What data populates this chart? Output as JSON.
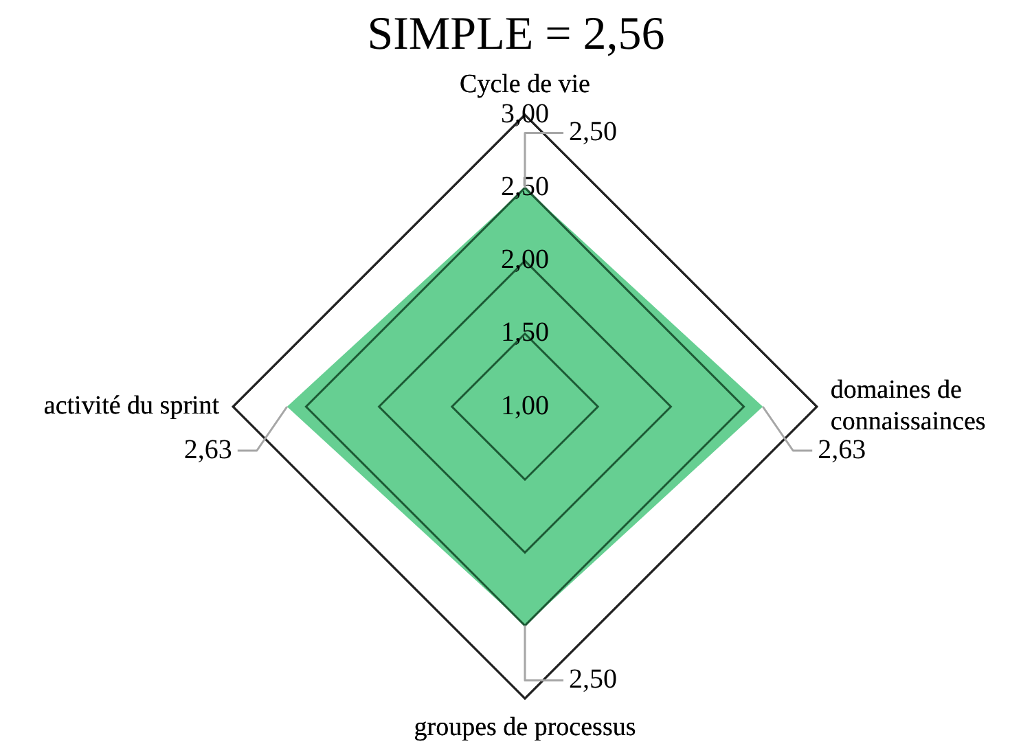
{
  "chart_data": {
    "type": "radar",
    "title": "SIMPLE = 2,56",
    "categories": [
      "Cycle de vie",
      "domaines de connaissainces",
      "groupes de processus",
      "activité du sprint"
    ],
    "series": [
      {
        "color": "#66cf92",
        "values": [
          2.5,
          2.63,
          2.5,
          2.63
        ],
        "value_labels": [
          "2,50",
          "2,63",
          "2,50",
          "2,63"
        ]
      }
    ],
    "ylim": [
      1,
      3
    ],
    "yticks": [
      {
        "value": 1,
        "label": "1,00"
      },
      {
        "value": 1.5,
        "label": "1,50"
      },
      {
        "value": 2,
        "label": "2,00"
      },
      {
        "value": 2.5,
        "label": "2,50"
      },
      {
        "value": 3,
        "label": "3,00"
      }
    ],
    "grid": true,
    "legend": false,
    "marker": "none"
  }
}
